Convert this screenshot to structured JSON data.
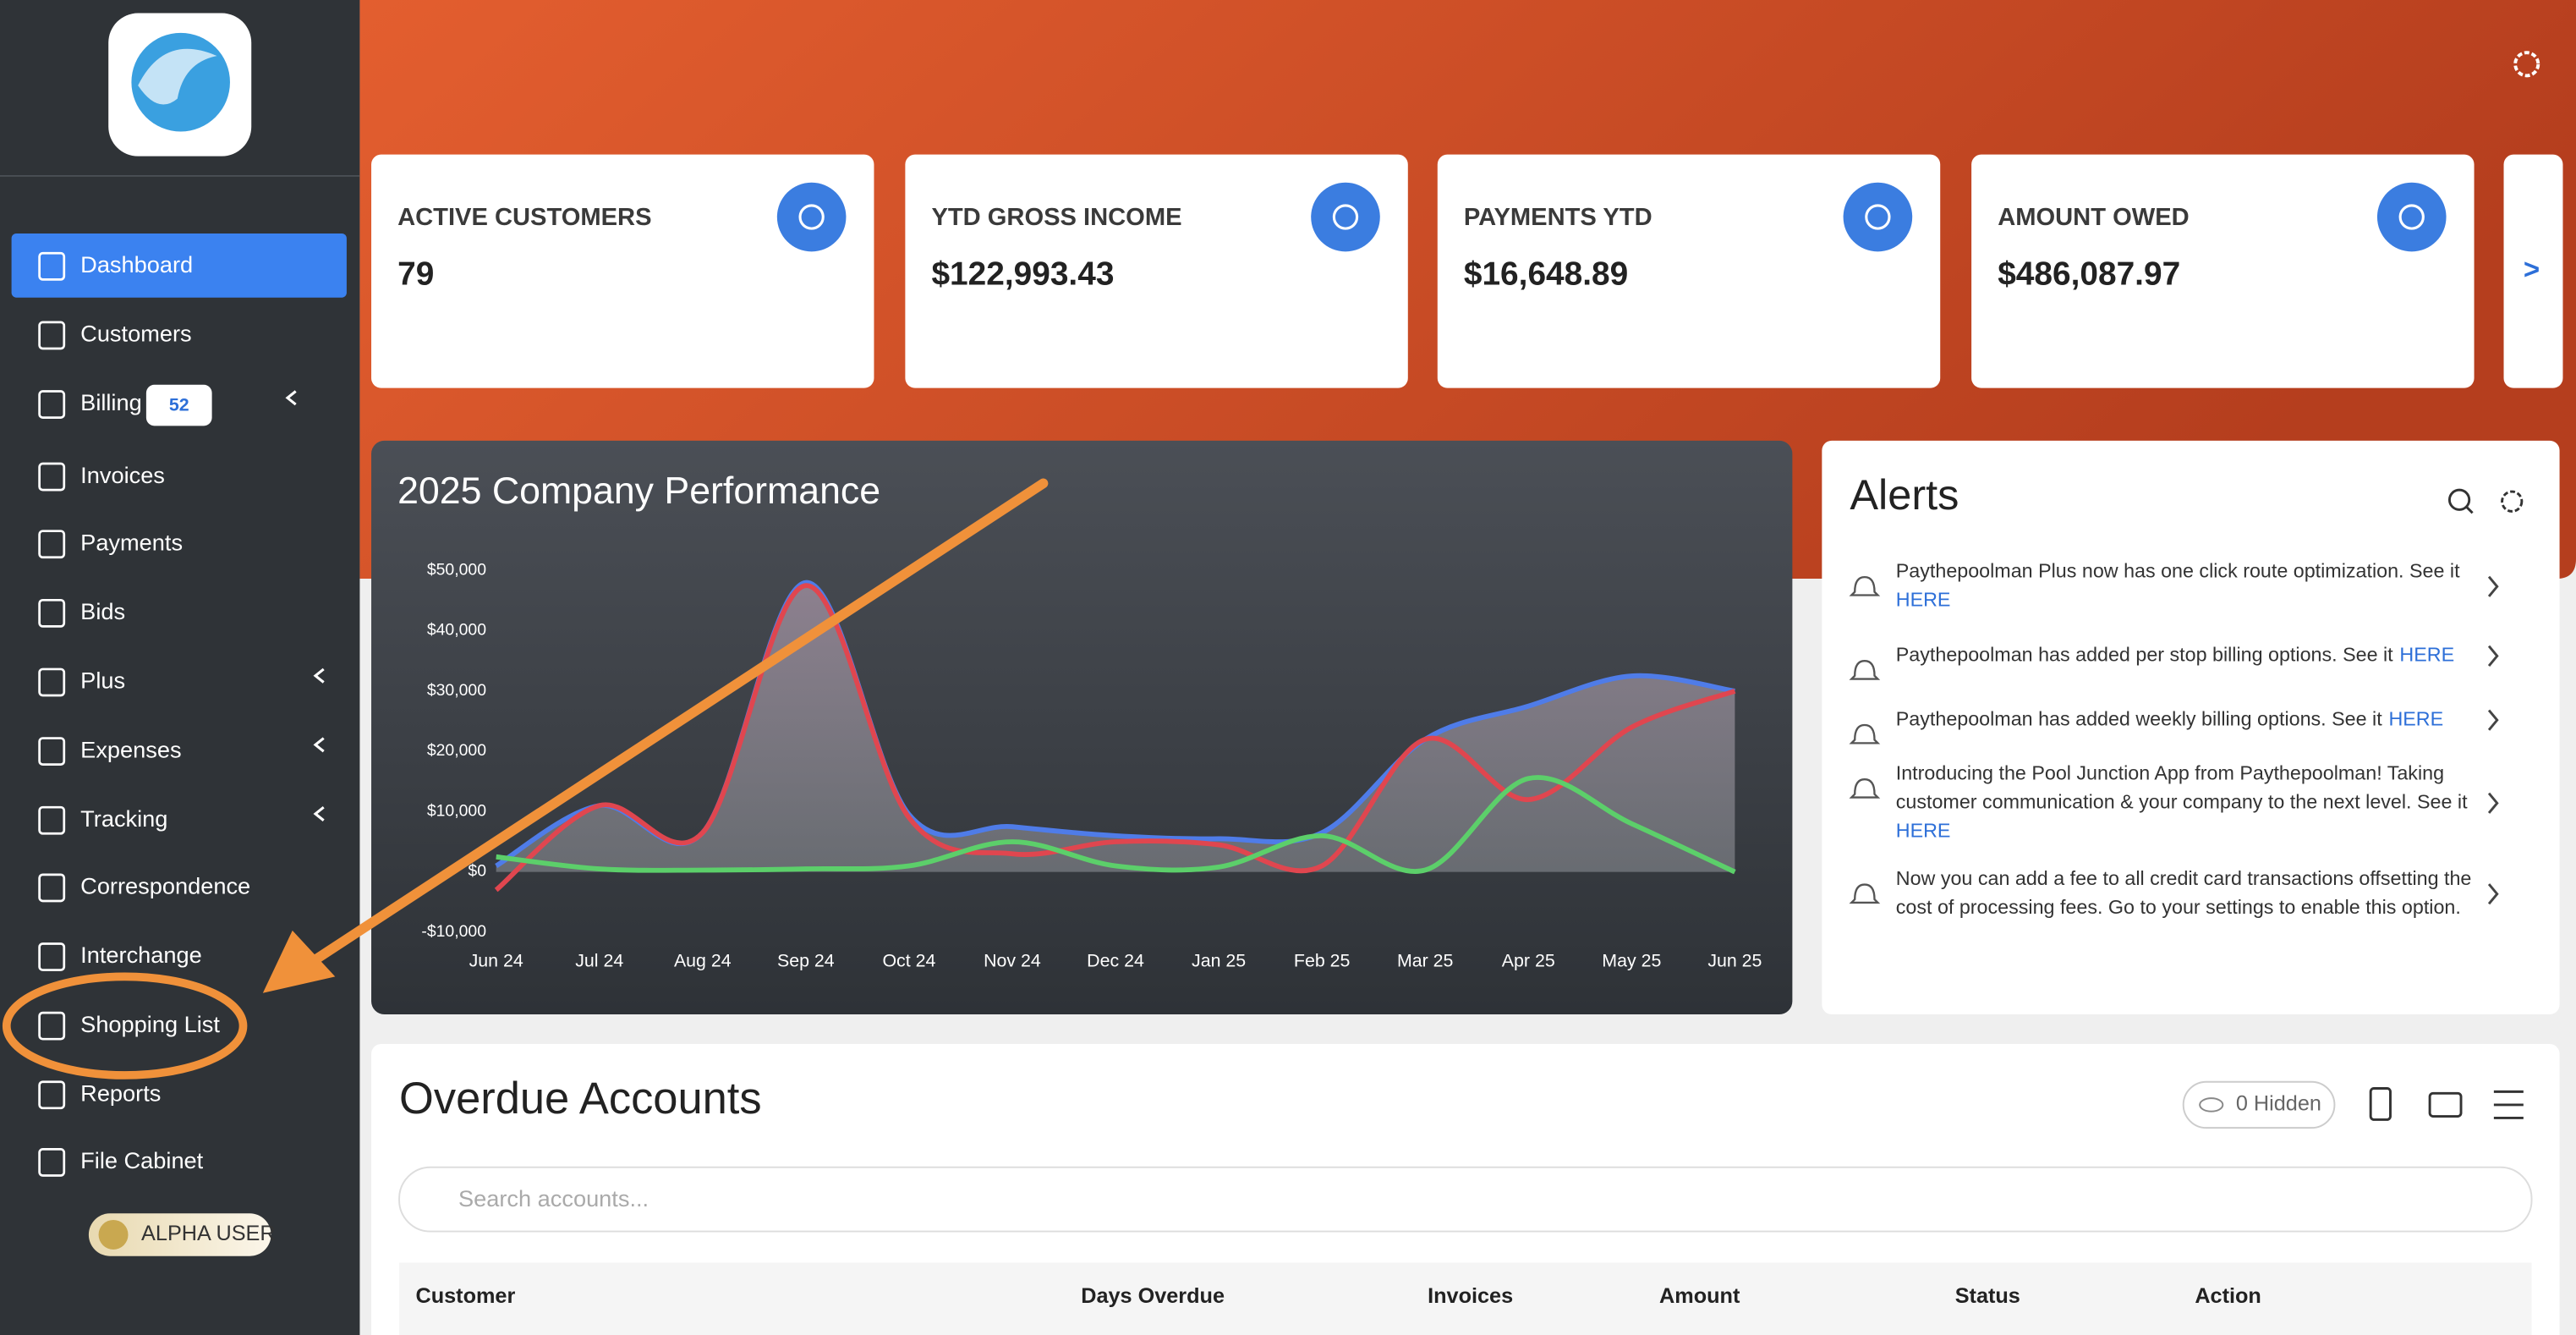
{
  "sidebar": {
    "nav": [
      "Dashboard",
      "Customers",
      "Billing",
      "Invoices",
      "Payments",
      "Bids",
      "Plus",
      "Expenses",
      "Tracking",
      "Correspondence",
      "Interchange",
      "Shopping List",
      "Reports",
      "File Cabinet"
    ],
    "billing_badge": "52",
    "user_badge": "ALPHA USER"
  },
  "cards": [
    {
      "label": "ACTIVE CUSTOMERS",
      "value": "79"
    },
    {
      "label": "YTD GROSS INCOME",
      "value": "$122,993.43"
    },
    {
      "label": "PAYMENTS YTD",
      "value": "$16,648.89"
    },
    {
      "label": "AMOUNT OWED",
      "value": "$486,087.97"
    }
  ],
  "cards_more": ">",
  "chart_data": {
    "type": "line",
    "title": "2025 Company Performance",
    "categories": [
      "Jun 24",
      "Jul 24",
      "Aug 24",
      "Sep 24",
      "Oct 24",
      "Nov 24",
      "Dec 24",
      "Jan 25",
      "Feb 25",
      "Mar 25",
      "Apr 25",
      "May 25",
      "Jun 25"
    ],
    "series": [
      {
        "color": "#4f7ce8",
        "values": [
          1000,
          11000,
          6500,
          48000,
          9500,
          7500,
          6000,
          5500,
          6500,
          22000,
          27500,
          32500,
          30000
        ]
      },
      {
        "color": "#e0464f",
        "values": [
          -3000,
          11000,
          6500,
          47500,
          9000,
          3000,
          5000,
          4500,
          1000,
          22000,
          12000,
          24000,
          30000
        ]
      },
      {
        "color": "#5ccf6a",
        "values": [
          2500,
          500,
          300,
          500,
          1000,
          5000,
          1000,
          800,
          6000,
          300,
          15500,
          8000,
          0
        ]
      }
    ],
    "ylim": [
      -10000,
      50000
    ],
    "yticks": [
      {
        "value": -10000,
        "label": "-$10,000"
      },
      {
        "value": 0,
        "label": "$0"
      },
      {
        "value": 10000,
        "label": "$10,000"
      },
      {
        "value": 20000,
        "label": "$20,000"
      },
      {
        "value": 30000,
        "label": "$30,000"
      },
      {
        "value": 40000,
        "label": "$40,000"
      },
      {
        "value": 50000,
        "label": "$50,000"
      }
    ],
    "grid": false
  },
  "alerts": {
    "title": "Alerts",
    "items": [
      {
        "lines": [
          "Paythepoolman Plus now has one click route optimization. See it"
        ],
        "link": "HERE"
      },
      {
        "lines": [
          "Paythepoolman has added per stop billing options. See it"
        ],
        "link": "HERE"
      },
      {
        "lines": [
          "Paythepoolman has added weekly billing options. See it"
        ],
        "link": "HERE"
      },
      {
        "lines": [
          "Introducing the Pool Junction App from Paythepoolman! Taking",
          "customer communication & your company to the next level. See it"
        ],
        "link": "HERE"
      },
      {
        "lines": [
          "Now you can add a fee to all credit card transactions offsetting the",
          "cost of processing fees. Go to your settings to enable this option."
        ]
      }
    ]
  },
  "overdue": {
    "title": "Overdue Accounts",
    "hidden": "0 Hidden",
    "search_placeholder": "Search accounts...",
    "columns": [
      "Customer",
      "Days Overdue",
      "Invoices",
      "Amount",
      "Status",
      "Action"
    ]
  }
}
